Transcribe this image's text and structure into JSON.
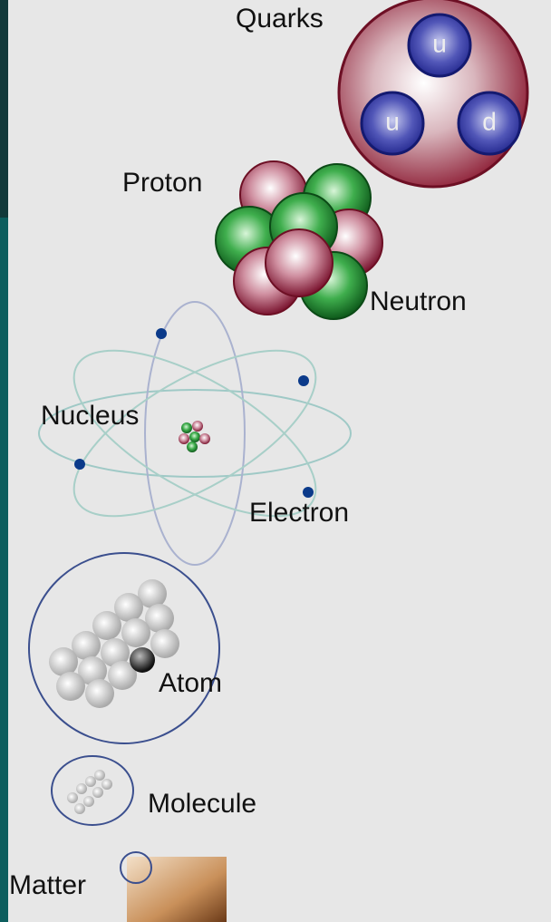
{
  "nodes": [
    {
      "label": "Quarks"
    },
    {
      "label": "Proton"
    },
    {
      "label": "Neutron"
    },
    {
      "label": "Nucleus"
    },
    {
      "label": "Electron"
    },
    {
      "label": "Atom"
    },
    {
      "label": "Molecule"
    },
    {
      "label": "Matter"
    }
  ],
  "quarks": [
    "u",
    "u",
    "d"
  ]
}
